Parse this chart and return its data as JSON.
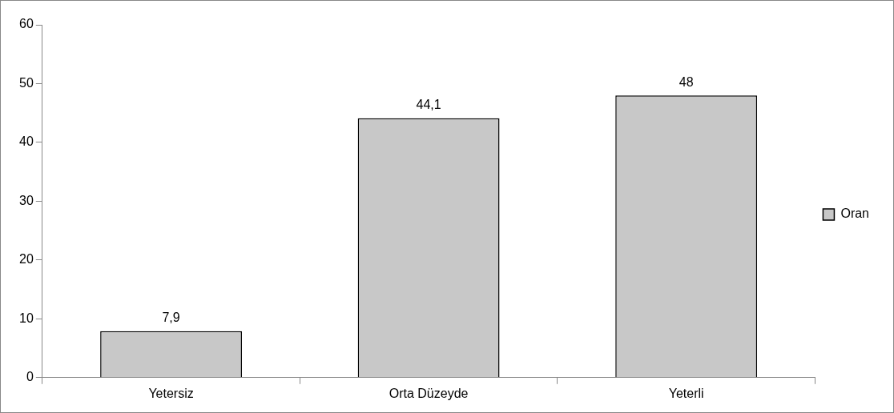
{
  "chart_data": {
    "type": "bar",
    "categories": [
      "Yetersiz",
      "Orta Düzeyde",
      "Yeterli"
    ],
    "series": [
      {
        "name": "Oran",
        "color": "#c8c8c8",
        "values": [
          7.9,
          44.1,
          48
        ],
        "value_labels": [
          "7,9",
          "44,1",
          "48"
        ]
      }
    ],
    "ylim": [
      0,
      60
    ],
    "yticks": [
      0,
      10,
      20,
      30,
      40,
      50,
      60
    ],
    "grid": false,
    "legend": "right"
  }
}
